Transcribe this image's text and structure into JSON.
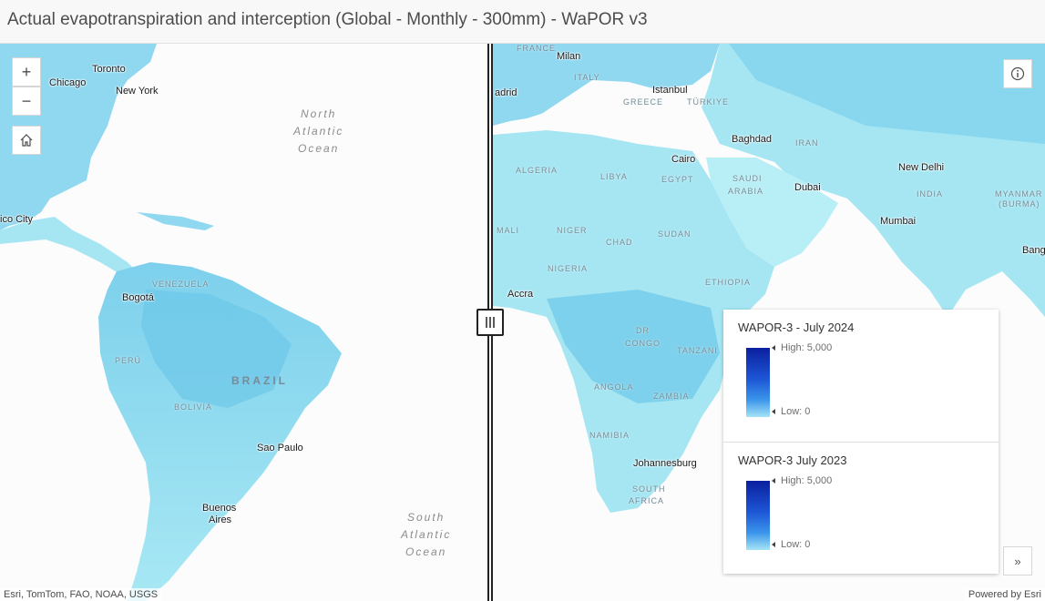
{
  "header": {
    "title": "Actual evapotranspiration and interception (Global - Monthly - 300mm) - WaPOR v3"
  },
  "map": {
    "zoom_in_label": "+",
    "zoom_out_label": "−",
    "cities": {
      "toronto": "Toronto",
      "chicago": "Chicago",
      "new_york": "New York",
      "mexico_city": "ico City",
      "bogota": "Bogotá",
      "sao_paulo": "Sao Paulo",
      "buenos_aires_1": "Buenos",
      "buenos_aires_2": "Aires",
      "milan": "Milan",
      "madrid": "adrid",
      "istanbul": "Istanbul",
      "baghdad": "Baghdad",
      "cairo": "Cairo",
      "dubai": "Dubai",
      "new_delhi": "New Delhi",
      "mumbai": "Mumbai",
      "accra": "Accra",
      "johannesburg": "Johannesburg",
      "bang": "Bang"
    },
    "countries": {
      "venezuela": "VENEZUELA",
      "peru": "PERÚ",
      "brazil": "BRAZIL",
      "bolivia": "BOLIVIA",
      "france": "FRANCE",
      "italy": "ITALY",
      "greece": "GREECE",
      "turkiye": "TÜRKIYE",
      "iran": "IRAN",
      "algeria": "ALGERIA",
      "libya": "LIBYA",
      "egypt": "EGYPT",
      "saudi_1": "SAUDI",
      "saudi_2": "ARABIA",
      "india": "INDIA",
      "myanmar_1": "MYANMAR",
      "myanmar_2": "(BURMA)",
      "mali": "MALI",
      "niger": "NIGER",
      "chad": "CHAD",
      "sudan": "SUDAN",
      "nigeria": "NIGERIA",
      "ethiopia": "ETHIOPIA",
      "dr_1": "DR",
      "dr_2": "CONGO",
      "tanzania": "TANZANI",
      "angola": "ANGOLA",
      "zambia": "ZAMBIA",
      "namibia": "NAMIBIA",
      "south_africa_1": "SOUTH",
      "south_africa_2": "AFRICA"
    },
    "oceans": {
      "north_atlantic": [
        "North",
        "Atlantic",
        "Ocean"
      ],
      "south_atlantic": [
        "South",
        "Atlantic",
        "Ocean"
      ]
    },
    "attribution_left": "Esri, TomTom, FAO, NOAA, USGS",
    "attribution_right": "Powered by Esri"
  },
  "legend": {
    "layers": [
      {
        "title": "WAPOR-3 - July 2024",
        "high": "High: 5,000",
        "low": "Low: 0"
      },
      {
        "title": "WAPOR-3 July 2023",
        "high": "High: 5,000",
        "low": "Low: 0"
      }
    ],
    "expand_label": "»"
  },
  "colors": {
    "land_et": "#a6e8f3",
    "land_et_dark": "#6cc8e8",
    "ramp_high": "#0b1f9e",
    "ramp_low": "#a5e4f6"
  }
}
